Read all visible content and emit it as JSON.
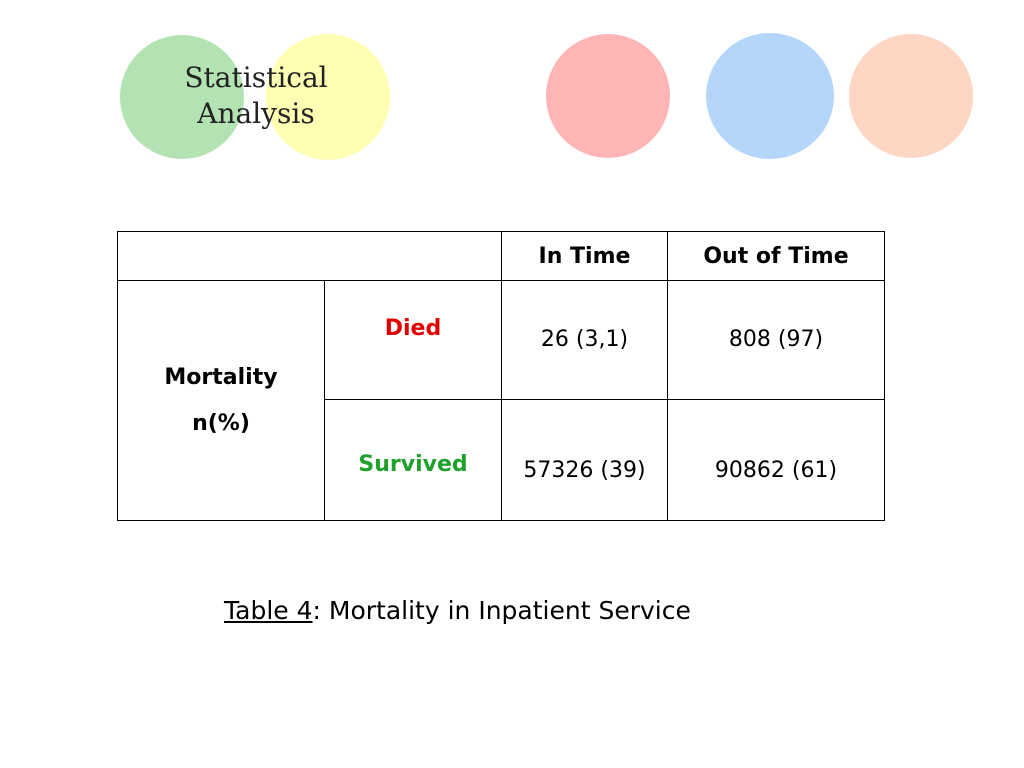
{
  "title": {
    "line1": "Statistical",
    "line2": "Analysis"
  },
  "decoration": {
    "circle_colors": [
      "#b3e3b3",
      "#ffffb3",
      "#ffb5b5",
      "#b4d6fb",
      "#fed6c3"
    ]
  },
  "table": {
    "headers": {
      "in_time": "In Time",
      "out_of_time": "Out of Time"
    },
    "row_label": {
      "line1": "Mortality",
      "line2": "n(%)"
    },
    "rows": [
      {
        "category": "Died",
        "in_time": "26 (3,1)",
        "out_of_time": "808 (97)",
        "color": "#e00000"
      },
      {
        "category": "Survived",
        "in_time": "57326 (39)",
        "out_of_time": "90862 (61)",
        "color": "#1fa12b"
      }
    ]
  },
  "caption": {
    "label": "Table 4",
    "text": ": Mortality in Inpatient Service"
  }
}
